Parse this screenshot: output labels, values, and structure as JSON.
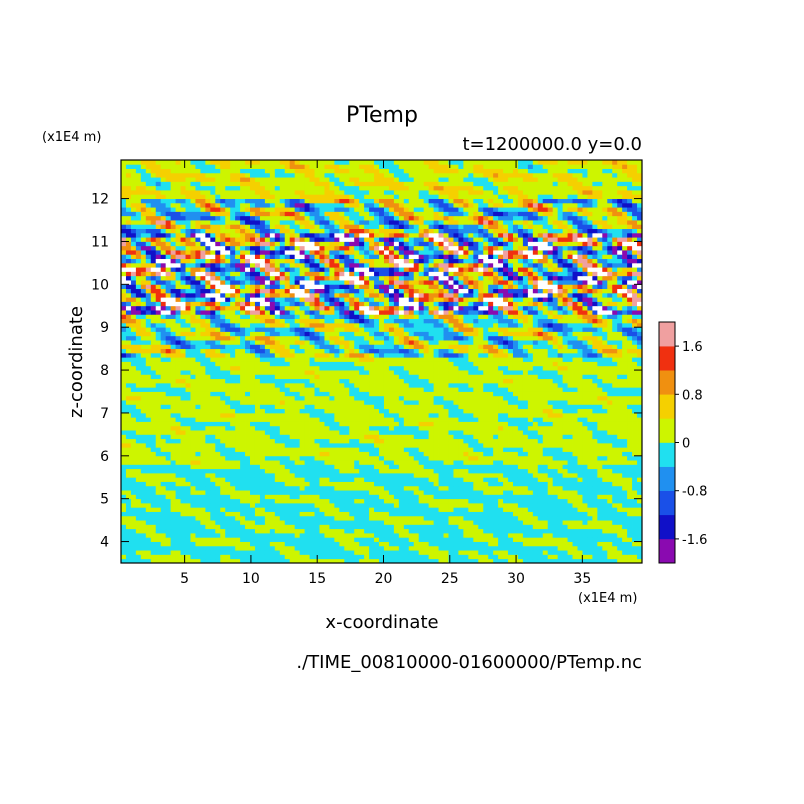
{
  "chart_data": {
    "type": "heatmap",
    "title": "PTemp",
    "subtitle": "t=1200000.0 y=0.0",
    "xlabel": "x-coordinate",
    "ylabel": "z-coordinate",
    "x_unit": "(x1E4 m)",
    "y_unit": "(x1E4 m)",
    "xlim": [
      0.2,
      39.5
    ],
    "ylim": [
      3.5,
      12.9
    ],
    "x_ticks": [
      5,
      10,
      15,
      20,
      25,
      30,
      35
    ],
    "y_ticks": [
      4,
      5,
      6,
      7,
      8,
      9,
      10,
      11,
      12
    ],
    "colorbar": {
      "ticks": [
        1.6,
        0.8,
        0,
        -0.8,
        -1.6
      ],
      "levels": [
        -2.0,
        -1.6,
        -1.2,
        -0.8,
        -0.4,
        0,
        0.4,
        0.8,
        1.2,
        1.6,
        2.0
      ],
      "colors": [
        "#8a0ab0",
        "#1010c8",
        "#1a50e8",
        "#2090f0",
        "#20e0f0",
        "#cdf500",
        "#f5d000",
        "#f09010",
        "#f03010",
        "#f0a0a0"
      ]
    },
    "layers": [
      {
        "zmin": 12.0,
        "zmax": 12.9,
        "mean": 0.25,
        "amplitude": 0.6
      },
      {
        "zmin": 11.2,
        "zmax": 12.0,
        "mean": 0.0,
        "amplitude": 1.5
      },
      {
        "zmin": 9.3,
        "zmax": 11.2,
        "mean": 0.0,
        "amplitude": 3.0
      },
      {
        "zmin": 8.3,
        "zmax": 9.3,
        "mean": 0.0,
        "amplitude": 1.2
      },
      {
        "zmin": 5.8,
        "zmax": 8.3,
        "mean": 0.1,
        "amplitude": 0.35
      },
      {
        "zmin": 3.5,
        "zmax": 5.8,
        "mean": -0.05,
        "amplitude": 0.3
      }
    ]
  },
  "footer": {
    "path": "./TIME_00810000-01600000/PTemp.nc"
  }
}
